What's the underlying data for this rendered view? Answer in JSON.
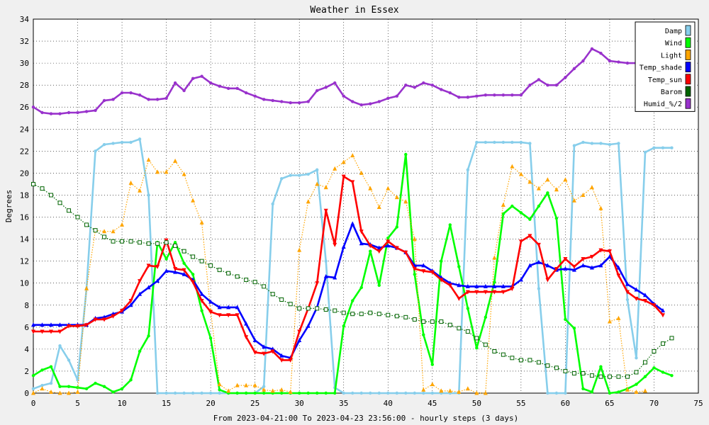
{
  "chart_data": {
    "type": "line",
    "title": "Weather in Essex",
    "xlabel": "From 2023-04-21:00 To 2023-04-23 23:56:00 - hourly steps (3 days)",
    "ylabel": "Degrees",
    "xlim": [
      0,
      75
    ],
    "ylim": [
      0,
      34
    ],
    "xticks": [
      0,
      5,
      10,
      15,
      20,
      25,
      30,
      35,
      40,
      45,
      50,
      55,
      60,
      65,
      70,
      75
    ],
    "yticks": [
      0,
      2,
      4,
      6,
      8,
      10,
      12,
      14,
      16,
      18,
      20,
      22,
      24,
      26,
      28,
      30,
      32,
      34
    ],
    "grid": true,
    "legend_position": "top-right",
    "series": [
      {
        "name": "Damp",
        "color": "#87ceeb",
        "style": "solid",
        "values": [
          0.4,
          0.7,
          0.9,
          4.3,
          3.0,
          1.2,
          9.5,
          22.0,
          22.6,
          22.7,
          22.8,
          22.8,
          23.1,
          18.0,
          0,
          0,
          0,
          0,
          0,
          0,
          0,
          0,
          0,
          0,
          0,
          0,
          0.6,
          17.2,
          19.5,
          19.8,
          19.8,
          19.9,
          20.3,
          12.0,
          0.5,
          0,
          0,
          0,
          0,
          0,
          0,
          0,
          0,
          0,
          0,
          0,
          0,
          0,
          0,
          20.3,
          22.8,
          22.8,
          22.8,
          22.8,
          22.8,
          22.8,
          22.7,
          9.5,
          0,
          0,
          0,
          22.5,
          22.8,
          22.7,
          22.7,
          22.6,
          22.7,
          8.5,
          3.2,
          21.9,
          22.3,
          22.3,
          22.3
        ]
      },
      {
        "name": "Wind",
        "color": "#00ff00",
        "style": "solid",
        "values": [
          1.6,
          2.1,
          2.4,
          0.6,
          0.6,
          0.5,
          0.4,
          0.9,
          0.6,
          0.1,
          0.4,
          1.2,
          3.8,
          5.2,
          13.7,
          12.2,
          13.7,
          11.8,
          10.8,
          7.5,
          5.0,
          0.3,
          0,
          0,
          0,
          0,
          0,
          0,
          0,
          0,
          0,
          0,
          0,
          0,
          0,
          6.1,
          8.4,
          9.6,
          12.9,
          9.8,
          14.1,
          15.1,
          21.7,
          10.8,
          5.3,
          2.6,
          12.0,
          15.3,
          11.5,
          7.7,
          4.1,
          6.9,
          10.1,
          16.3,
          17.0,
          16.4,
          15.8,
          17.0,
          18.2,
          15.9,
          6.7,
          5.9,
          0.4,
          0.1,
          2.4,
          0,
          0.1,
          0.4,
          0.8,
          1.5,
          2.3,
          1.9,
          1.6
        ]
      },
      {
        "name": "Light",
        "color": "#ffa500",
        "style": "dotted",
        "values": [
          0,
          0.4,
          0.1,
          0,
          0,
          0.1,
          9.5,
          14.8,
          14.7,
          14.7,
          15.3,
          19.1,
          18.4,
          21.2,
          20.1,
          20.1,
          21.1,
          19.9,
          17.5,
          15.5,
          7.5,
          0.8,
          0.2,
          0.7,
          0.7,
          0.7,
          0.3,
          0.2,
          0.3,
          0.1,
          13.0,
          17.4,
          19.0,
          18.7,
          20.4,
          21.0,
          21.6,
          20.0,
          18.6,
          16.9,
          18.6,
          17.8,
          17.4,
          14.0,
          0.3,
          0.8,
          0.2,
          0.2,
          0.1,
          0.4,
          0,
          0,
          12.3,
          17.1,
          20.6,
          19.9,
          19.2,
          18.6,
          19.4,
          18.5,
          19.4,
          17.5,
          18.0,
          18.7,
          16.8,
          6.5,
          6.8,
          0.3,
          0.1,
          0.2,
          null,
          null,
          null
        ]
      },
      {
        "name": "Temp_shade",
        "color": "#0000ff",
        "style": "solid",
        "values": [
          6.2,
          6.2,
          6.2,
          6.2,
          6.2,
          6.2,
          6.2,
          6.8,
          6.9,
          7.2,
          7.4,
          8.0,
          9.0,
          9.6,
          10.2,
          11.1,
          11.0,
          10.8,
          10.3,
          9.0,
          8.3,
          7.8,
          7.8,
          7.8,
          6.3,
          4.8,
          4.2,
          4.0,
          3.4,
          3.2,
          4.8,
          6.1,
          7.8,
          10.6,
          10.5,
          13.3,
          15.4,
          13.6,
          13.5,
          13.2,
          13.4,
          13.2,
          12.8,
          11.6,
          11.6,
          11.1,
          10.5,
          10.0,
          9.8,
          9.7,
          9.7,
          9.7,
          9.7,
          9.7,
          9.7,
          10.3,
          11.6,
          11.9,
          11.6,
          11.2,
          11.3,
          11.2,
          11.6,
          11.4,
          11.6,
          12.4,
          11.4,
          9.9,
          9.4,
          8.9,
          8.1,
          7.5,
          null
        ]
      },
      {
        "name": "Temp_sun",
        "color": "#ff0000",
        "style": "solid",
        "values": [
          5.6,
          5.6,
          5.6,
          5.6,
          6.1,
          6.1,
          6.2,
          6.7,
          6.7,
          7.0,
          7.5,
          8.4,
          10.2,
          11.6,
          11.5,
          13.9,
          11.3,
          11.2,
          10.1,
          8.4,
          7.4,
          7.1,
          7.1,
          7.1,
          5.1,
          3.7,
          3.6,
          3.8,
          3.0,
          3.0,
          5.6,
          7.7,
          10.0,
          16.6,
          13.5,
          19.7,
          19.2,
          14.7,
          13.4,
          12.9,
          13.8,
          13.2,
          12.8,
          11.3,
          11.1,
          11.0,
          10.3,
          9.8,
          8.6,
          9.2,
          9.2,
          9.2,
          9.2,
          9.2,
          9.5,
          13.8,
          14.3,
          13.5,
          10.3,
          11.3,
          12.2,
          11.5,
          12.2,
          12.4,
          13.0,
          12.9,
          10.7,
          9.2,
          8.6,
          8.4,
          8.0,
          7.1,
          null
        ]
      },
      {
        "name": "Barom",
        "color": "#006400",
        "style": "dotted",
        "values": [
          19.0,
          18.6,
          18.0,
          17.3,
          16.6,
          16.0,
          15.3,
          14.8,
          14.2,
          13.8,
          13.8,
          13.8,
          13.7,
          13.6,
          13.6,
          13.7,
          13.4,
          12.9,
          12.4,
          12.0,
          11.6,
          11.2,
          10.9,
          10.6,
          10.3,
          10.1,
          9.7,
          9.0,
          8.5,
          8.1,
          7.7,
          7.7,
          7.7,
          7.6,
          7.5,
          7.3,
          7.2,
          7.2,
          7.3,
          7.2,
          7.1,
          7.0,
          6.9,
          6.7,
          6.5,
          6.5,
          6.5,
          6.2,
          5.9,
          5.6,
          5.0,
          4.4,
          3.8,
          3.5,
          3.2,
          3.0,
          3.0,
          2.8,
          2.5,
          2.3,
          2.0,
          1.8,
          1.8,
          1.6,
          1.5,
          1.5,
          1.5,
          1.5,
          1.9,
          2.8,
          3.8,
          4.5,
          5.0
        ]
      },
      {
        "name": "Humid_%/2",
        "color": "#9932cc",
        "style": "solid",
        "values": [
          26.0,
          25.5,
          25.4,
          25.4,
          25.5,
          25.5,
          25.6,
          25.7,
          26.6,
          26.7,
          27.3,
          27.3,
          27.1,
          26.7,
          26.7,
          26.8,
          28.2,
          27.5,
          28.6,
          28.8,
          28.2,
          27.9,
          27.7,
          27.7,
          27.3,
          27.0,
          26.7,
          26.6,
          26.5,
          26.4,
          26.4,
          26.5,
          27.5,
          27.8,
          28.2,
          27.0,
          26.5,
          26.2,
          26.3,
          26.5,
          26.8,
          27.0,
          28.0,
          27.8,
          28.2,
          28.0,
          27.6,
          27.3,
          26.9,
          26.9,
          27.0,
          27.1,
          27.1,
          27.1,
          27.1,
          27.1,
          28.0,
          28.5,
          28.0,
          28.0,
          28.7,
          29.5,
          30.2,
          31.3,
          30.9,
          30.2,
          30.1,
          30.0,
          30.0,
          29.6,
          null,
          null,
          null
        ]
      }
    ]
  }
}
